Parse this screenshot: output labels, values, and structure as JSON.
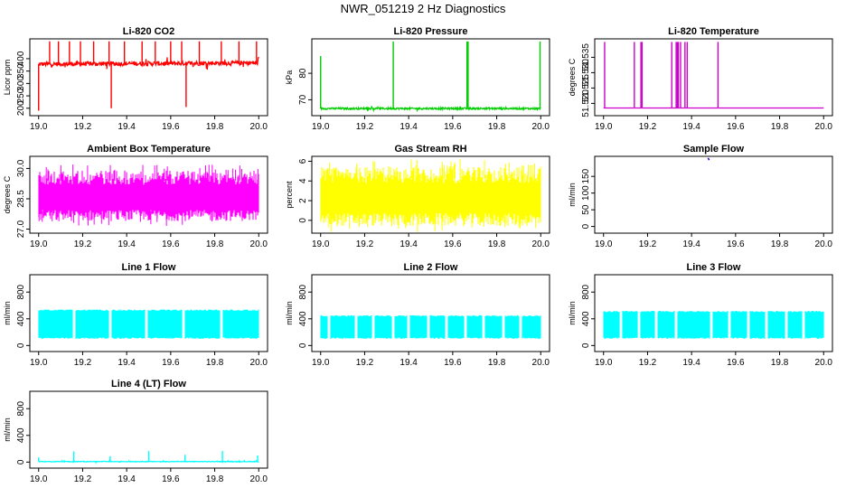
{
  "figure": {
    "title": "NWR_051219  2 Hz Diagnostics",
    "background": "#ffffff",
    "axis_color": "#000000"
  },
  "chart_data": [
    {
      "type": "line",
      "title": "Li-820 CO2",
      "ylabel": "Licor ppm",
      "color": "#ff0000",
      "xlim": [
        18.96,
        20.04
      ],
      "ylim": [
        170,
        480
      ],
      "xticks": [
        "19.0",
        "19.2",
        "19.4",
        "19.6",
        "19.8",
        "20.0"
      ],
      "xtick_values": [
        19.0,
        19.2,
        19.4,
        19.6,
        19.8,
        20.0
      ],
      "yticks": [
        "200",
        "250",
        "300",
        "350",
        "400"
      ],
      "ytick_values": [
        200,
        250,
        300,
        350,
        400
      ],
      "pattern": "noise",
      "base": [
        378,
        383
      ],
      "noise": 9,
      "x_range": [
        19.0,
        20.0
      ],
      "spikes": [
        {
          "x": 19.0,
          "y": 190
        },
        {
          "x": 19.05,
          "y": 470
        },
        {
          "x": 19.09,
          "y": 470
        },
        {
          "x": 19.14,
          "y": 470
        },
        {
          "x": 19.19,
          "y": 470
        },
        {
          "x": 19.25,
          "y": 470
        },
        {
          "x": 19.32,
          "y": 470
        },
        {
          "x": 19.33,
          "y": 200
        },
        {
          "x": 19.39,
          "y": 470
        },
        {
          "x": 19.47,
          "y": 470
        },
        {
          "x": 19.53,
          "y": 470
        },
        {
          "x": 19.6,
          "y": 470
        },
        {
          "x": 19.65,
          "y": 470
        },
        {
          "x": 19.67,
          "y": 205
        },
        {
          "x": 19.73,
          "y": 470
        },
        {
          "x": 19.83,
          "y": 470
        },
        {
          "x": 19.91,
          "y": 470
        },
        {
          "x": 19.99,
          "y": 470
        }
      ]
    },
    {
      "type": "line",
      "title": "Li-820 Pressure",
      "ylabel": "kPa",
      "color": "#00cd00",
      "xlim": [
        18.96,
        20.04
      ],
      "ylim": [
        64,
        93
      ],
      "xticks": [
        "19.0",
        "19.2",
        "19.4",
        "19.6",
        "19.8",
        "20.0"
      ],
      "xtick_values": [
        19.0,
        19.2,
        19.4,
        19.6,
        19.8,
        20.0
      ],
      "yticks": [
        "70",
        "80"
      ],
      "ytick_values": [
        70,
        80
      ],
      "pattern": "noise",
      "base": [
        66.7,
        66.7
      ],
      "noise": 0.35,
      "x_range": [
        19.0,
        20.0
      ],
      "spikes": [
        {
          "x": 19.0,
          "y": 86.5
        },
        {
          "x": 19.33,
          "y": 92
        },
        {
          "x": 19.665,
          "y": 92
        },
        {
          "x": 19.67,
          "y": 92
        },
        {
          "x": 19.997,
          "y": 92
        }
      ]
    },
    {
      "type": "line",
      "title": "Li-820 Temperature",
      "ylabel": "degrees C",
      "color": "#cd00cd",
      "xlim": [
        18.96,
        20.04
      ],
      "ylim": [
        51.516,
        51.541
      ],
      "xticks": [
        "19.0",
        "19.2",
        "19.4",
        "19.6",
        "19.8",
        "20.0"
      ],
      "xtick_values": [
        19.0,
        19.2,
        19.4,
        19.6,
        19.8,
        20.0
      ],
      "yticks": [
        "51.520",
        "51.525",
        "51.530",
        "51.535"
      ],
      "ytick_values": [
        51.52,
        51.525,
        51.53,
        51.535
      ],
      "pattern": "step",
      "base": [
        51.5185,
        51.5185
      ],
      "noise": 0,
      "x_range": [
        19.0,
        20.0
      ],
      "spikes": [
        {
          "x": 19.005,
          "y": 51.54
        },
        {
          "x": 19.14,
          "y": 51.54
        },
        {
          "x": 19.17,
          "y": 51.54
        },
        {
          "x": 19.175,
          "y": 51.54
        },
        {
          "x": 19.31,
          "y": 51.54
        },
        {
          "x": 19.33,
          "y": 51.54
        },
        {
          "x": 19.335,
          "y": 51.54
        },
        {
          "x": 19.34,
          "y": 51.54
        },
        {
          "x": 19.35,
          "y": 51.54
        },
        {
          "x": 19.37,
          "y": 51.54
        },
        {
          "x": 19.38,
          "y": 51.54
        },
        {
          "x": 19.52,
          "y": 51.54
        }
      ]
    },
    {
      "type": "line",
      "title": "Ambient Box Temperature",
      "ylabel": "degrees C",
      "color": "#ff00ff",
      "xlim": [
        18.96,
        20.04
      ],
      "ylim": [
        26.8,
        30.6
      ],
      "xticks": [
        "19.0",
        "19.2",
        "19.4",
        "19.6",
        "19.8",
        "20.0"
      ],
      "xtick_values": [
        19.0,
        19.2,
        19.4,
        19.6,
        19.8,
        20.0
      ],
      "yticks": [
        "27.0",
        "28.5",
        "30.0"
      ],
      "ytick_values": [
        27.0,
        28.5,
        30.0
      ],
      "pattern": "band",
      "band": [
        27.4,
        29.9
      ],
      "x_range": [
        19.0,
        20.0
      ],
      "spikes": []
    },
    {
      "type": "line",
      "title": "Gas Stream RH",
      "ylabel": "percent",
      "color": "#ffff00",
      "xlim": [
        18.96,
        20.04
      ],
      "ylim": [
        -1.3,
        6.5
      ],
      "xticks": [
        "19.0",
        "19.2",
        "19.4",
        "19.6",
        "19.8",
        "20.0"
      ],
      "xtick_values": [
        19.0,
        19.2,
        19.4,
        19.6,
        19.8,
        20.0
      ],
      "yticks": [
        "0",
        "2",
        "4",
        "6"
      ],
      "ytick_values": [
        0,
        2,
        4,
        6
      ],
      "pattern": "band",
      "band": [
        -0.6,
        5.5
      ],
      "x_range": [
        19.0,
        20.0
      ],
      "spikes": []
    },
    {
      "type": "line",
      "title": "Sample Flow",
      "ylabel": "ml/min",
      "color": "#0000ff",
      "xlim": [
        18.96,
        20.04
      ],
      "ylim": [
        -20,
        210
      ],
      "xticks": [
        "19.0",
        "19.2",
        "19.4",
        "19.6",
        "19.8",
        "20.0"
      ],
      "xtick_values": [
        19.0,
        19.2,
        19.4,
        19.6,
        19.8,
        20.0
      ],
      "yticks": [
        "0",
        "50",
        "100",
        "150"
      ],
      "ytick_values": [
        0,
        50,
        100,
        150
      ],
      "pattern": "points",
      "points": [
        {
          "x": 19.475,
          "y": 205
        },
        {
          "x": 19.48,
          "y": 199
        }
      ],
      "spikes": []
    },
    {
      "type": "line",
      "title": "Line 1 Flow",
      "ylabel": "ml/min",
      "color": "#00ffff",
      "xlim": [
        18.96,
        20.04
      ],
      "ylim": [
        -90,
        1060
      ],
      "xticks": [
        "19.0",
        "19.2",
        "19.4",
        "19.6",
        "19.8",
        "20.0"
      ],
      "xtick_values": [
        19.0,
        19.2,
        19.4,
        19.6,
        19.8,
        20.0
      ],
      "yticks": [
        "0",
        "400",
        "800"
      ],
      "ytick_values": [
        0,
        400,
        800
      ],
      "pattern": "band",
      "band": [
        100,
        540
      ],
      "x_range": [
        19.0,
        20.0
      ],
      "gaps": [
        19.16,
        19.325,
        19.49,
        19.66,
        19.83
      ],
      "spikes": []
    },
    {
      "type": "line",
      "title": "Line 2 Flow",
      "ylabel": "ml/min",
      "color": "#00ffff",
      "xlim": [
        18.96,
        20.04
      ],
      "ylim": [
        -90,
        1060
      ],
      "xticks": [
        "19.0",
        "19.2",
        "19.4",
        "19.6",
        "19.8",
        "20.0"
      ],
      "xtick_values": [
        19.0,
        19.2,
        19.4,
        19.6,
        19.8,
        20.0
      ],
      "yticks": [
        "0",
        "400",
        "800"
      ],
      "ytick_values": [
        0,
        400,
        800
      ],
      "pattern": "band",
      "band": [
        100,
        455
      ],
      "x_range": [
        19.0,
        20.0
      ],
      "gaps": [
        19.04,
        19.16,
        19.24,
        19.33,
        19.4,
        19.49,
        19.57,
        19.66,
        19.74,
        19.83,
        19.91
      ],
      "spikes": []
    },
    {
      "type": "line",
      "title": "Line 3 Flow",
      "ylabel": "ml/min",
      "color": "#00ffff",
      "xlim": [
        18.96,
        20.04
      ],
      "ylim": [
        -90,
        1060
      ],
      "xticks": [
        "19.0",
        "19.2",
        "19.4",
        "19.6",
        "19.8",
        "20.0"
      ],
      "xtick_values": [
        19.0,
        19.2,
        19.4,
        19.6,
        19.8,
        20.0
      ],
      "yticks": [
        "0",
        "400",
        "800"
      ],
      "ytick_values": [
        0,
        400,
        800
      ],
      "pattern": "band",
      "band": [
        100,
        520
      ],
      "x_range": [
        19.0,
        20.0
      ],
      "gaps": [
        19.08,
        19.16,
        19.24,
        19.33,
        19.49,
        19.57,
        19.66,
        19.74,
        19.83,
        19.91
      ],
      "spikes": []
    },
    {
      "type": "line",
      "title": "Line 4 (LT) Flow",
      "ylabel": "ml/min",
      "color": "#00ffff",
      "xlim": [
        18.96,
        20.04
      ],
      "ylim": [
        -90,
        1060
      ],
      "xticks": [
        "19.0",
        "19.2",
        "19.4",
        "19.6",
        "19.8",
        "20.0"
      ],
      "xtick_values": [
        19.0,
        19.2,
        19.4,
        19.6,
        19.8,
        20.0
      ],
      "yticks": [
        "0",
        "400",
        "800"
      ],
      "ytick_values": [
        0,
        400,
        800
      ],
      "pattern": "noise",
      "base": [
        8,
        8
      ],
      "noise": 5,
      "x_range": [
        19.0,
        20.0
      ],
      "spikes": [
        {
          "x": 19.0,
          "y": 70
        },
        {
          "x": 19.16,
          "y": 160
        },
        {
          "x": 19.325,
          "y": 90
        },
        {
          "x": 19.5,
          "y": 165
        },
        {
          "x": 19.665,
          "y": 110
        },
        {
          "x": 19.835,
          "y": 165
        },
        {
          "x": 19.995,
          "y": 100
        }
      ]
    }
  ]
}
